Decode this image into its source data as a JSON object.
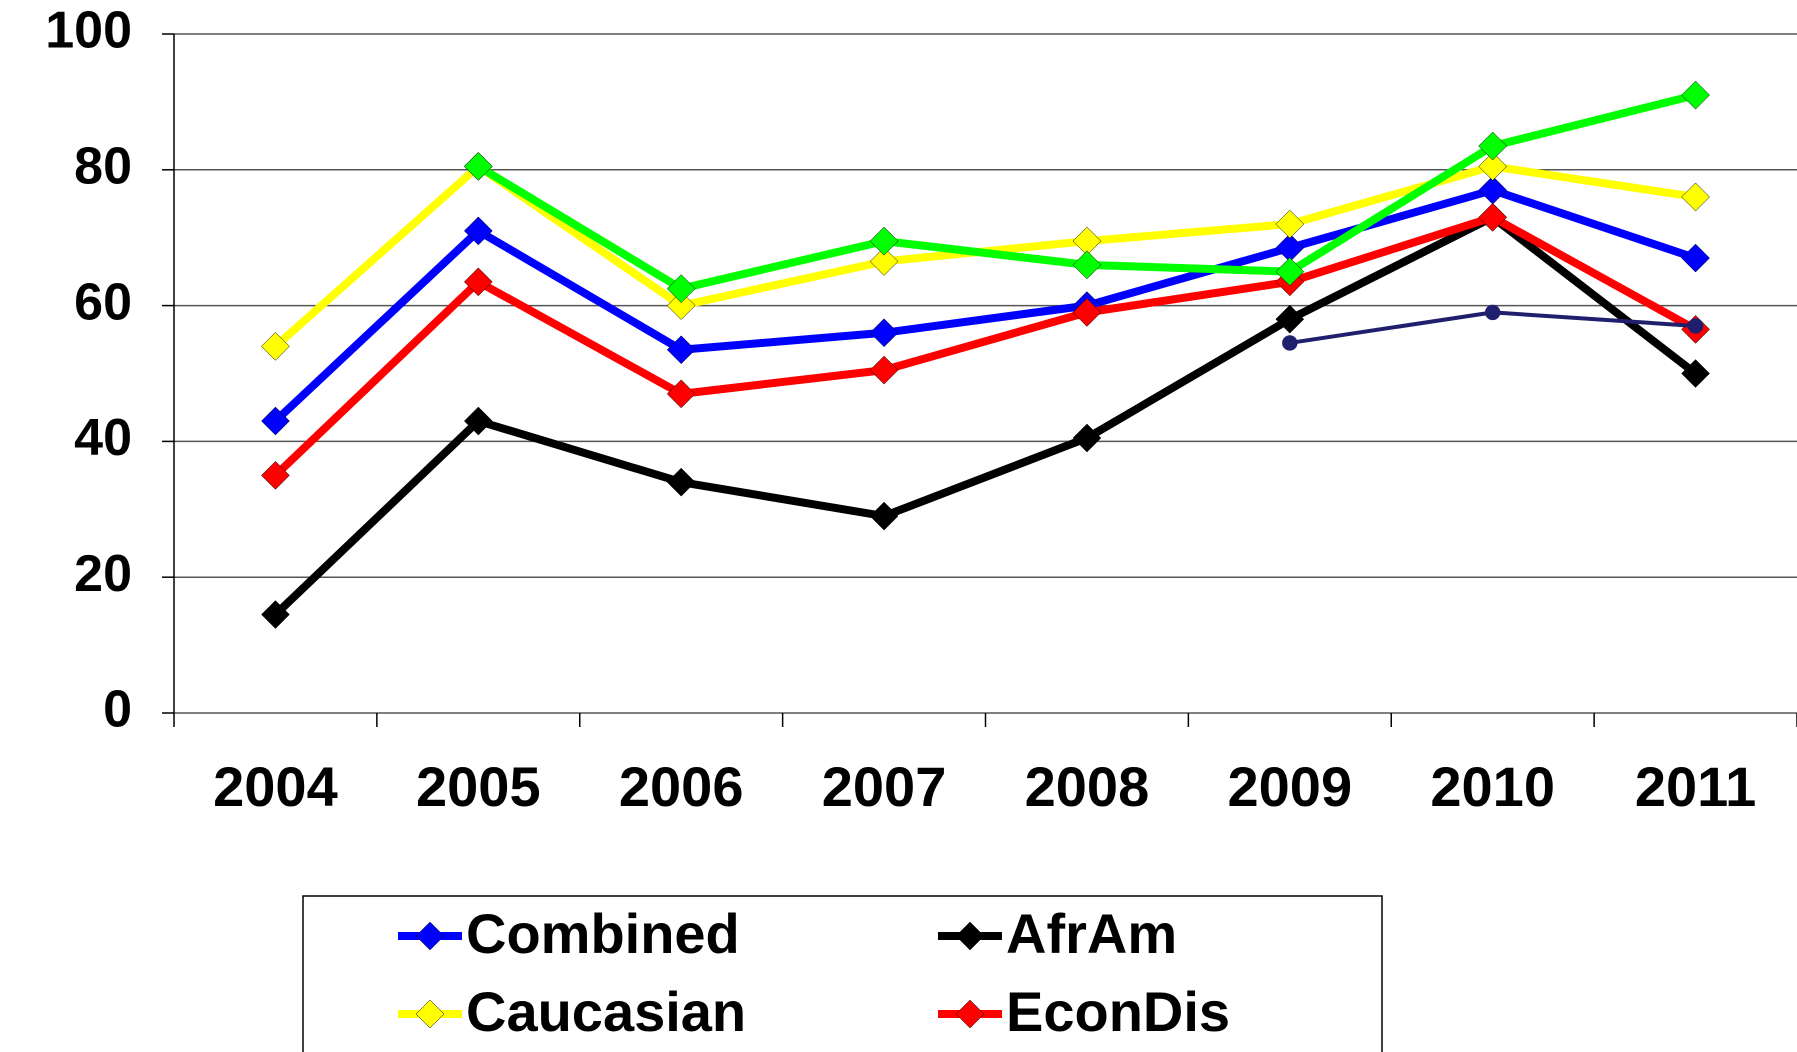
{
  "chart_data": {
    "type": "line",
    "categories": [
      "2004",
      "2005",
      "2006",
      "2007",
      "2008",
      "2009",
      "2010",
      "2011"
    ],
    "series": [
      {
        "name": "Combined",
        "color": "#0000ff",
        "marker": "diamond",
        "values": [
          43,
          71,
          53.5,
          56,
          60,
          68.5,
          77,
          67
        ]
      },
      {
        "name": "AfrAm",
        "color": "#000000",
        "marker": "diamond",
        "values": [
          14.5,
          43,
          34,
          29,
          40.5,
          58,
          73,
          50
        ]
      },
      {
        "name": "Caucasian",
        "color": "#ffff00",
        "marker": "diamond",
        "values": [
          54,
          80.5,
          60,
          66.5,
          69.5,
          72,
          80.5,
          76
        ]
      },
      {
        "name": "EconDis",
        "color": "#ff0000",
        "marker": "diamond",
        "values": [
          35,
          63.5,
          47,
          50.5,
          59,
          63.5,
          73,
          56.5
        ]
      },
      {
        "color": "#00ff00",
        "marker": "diamond",
        "values": [
          null,
          80.5,
          62.5,
          69.5,
          66,
          65,
          83.5,
          91
        ]
      },
      {
        "color": "#1f1f6e",
        "marker": "circle",
        "thin": true,
        "values": [
          null,
          null,
          null,
          null,
          null,
          54.5,
          59,
          57
        ]
      }
    ],
    "ylim": [
      0,
      100
    ],
    "yticks": [
      0,
      20,
      40,
      60,
      80,
      100
    ],
    "grid": true,
    "legend": "bottom"
  }
}
